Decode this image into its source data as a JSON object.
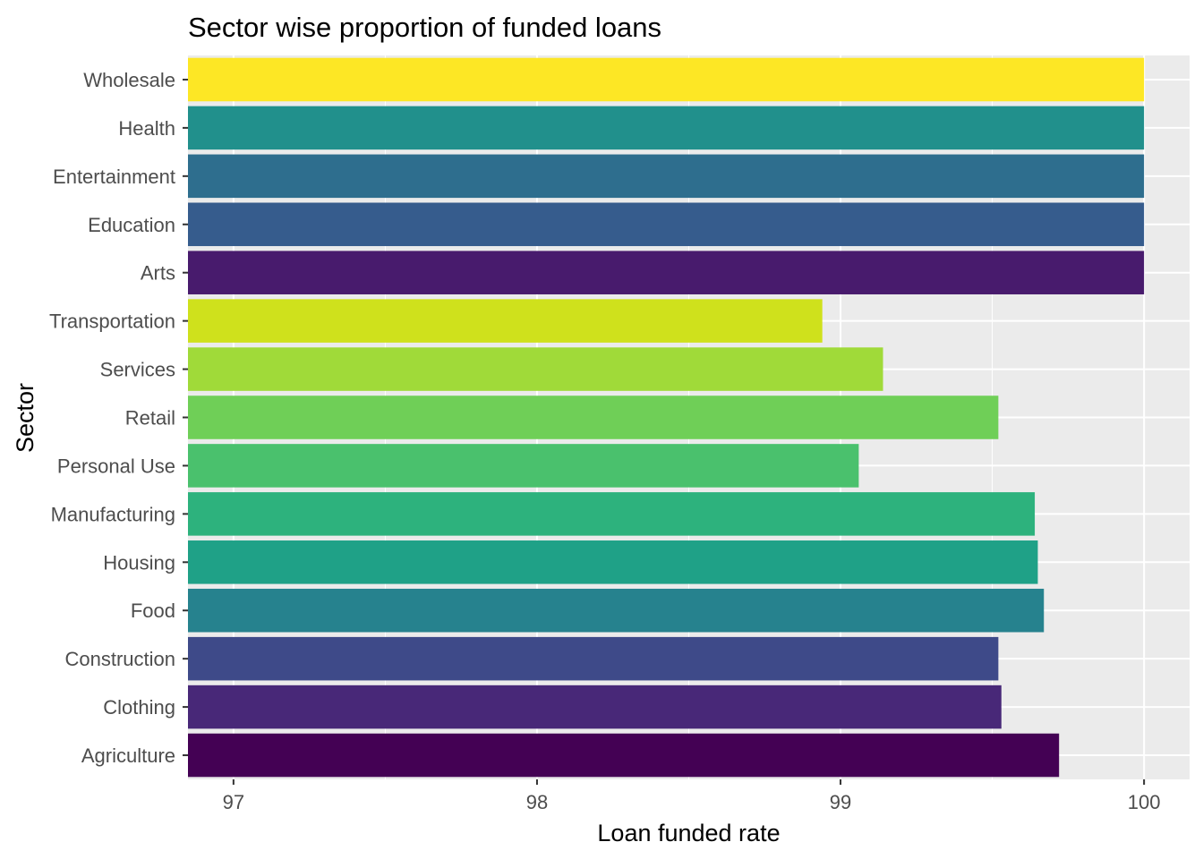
{
  "chart_data": {
    "type": "bar",
    "orientation": "horizontal",
    "title": "Sector wise proportion of funded loans",
    "xlabel": "Loan funded rate",
    "ylabel": "Sector",
    "xlim": [
      96.85,
      100.15
    ],
    "xticks": [
      "97",
      "98",
      "99",
      "100"
    ],
    "grid": true,
    "legend": "none",
    "categories": [
      "Agriculture",
      "Clothing",
      "Construction",
      "Food",
      "Housing",
      "Manufacturing",
      "Personal Use",
      "Retail",
      "Services",
      "Transportation",
      "Arts",
      "Education",
      "Entertainment",
      "Health",
      "Wholesale"
    ],
    "values": [
      99.72,
      99.53,
      99.52,
      99.67,
      99.65,
      99.64,
      99.06,
      99.52,
      99.14,
      98.94,
      100,
      100,
      100,
      100,
      100
    ],
    "colors": [
      "#440154",
      "#482878",
      "#3E4A89",
      "#26828E",
      "#1FA187",
      "#2DB27D",
      "#4AC16D",
      "#6FCF57",
      "#A0DA39",
      "#CFE11C",
      "#481B6D",
      "#365C8D",
      "#2E6E8E",
      "#21908C",
      "#FDE725"
    ]
  }
}
